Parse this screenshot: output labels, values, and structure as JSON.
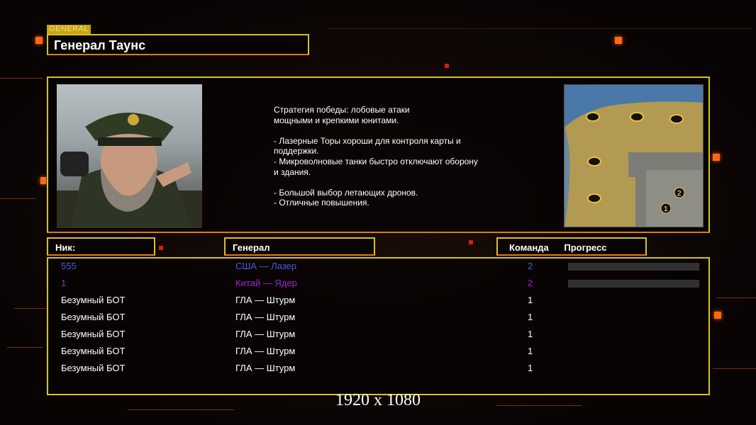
{
  "general_tag": "GENERAL",
  "general_name": "Генерал Таунс",
  "description": "Стратегия победы: лобовые атаки\nмощными и крепкими юнитами.\n\n- Лазерные Торы хороши для контроля карты и\n поддержки.\n- Микроволновые танки быстро отключают оборону\n и здания.\n\n- Большой выбор летающих дронов.\n- Отличные повышения.",
  "headers": {
    "nick": "Ник:",
    "general": "Генерал",
    "team": "Команда",
    "progress": "Прогресс"
  },
  "players": [
    {
      "nick": "555",
      "general": "США — Лазер",
      "team": "2",
      "color": "#4a5ae0",
      "progress": 0
    },
    {
      "nick": "1",
      "general": "Китай — Ядер",
      "team": "2",
      "color": "#9a28d2",
      "progress": 0
    },
    {
      "nick": "Безумный БОТ",
      "general": "ГЛА — Штурм",
      "team": "1",
      "color": "#ffffff"
    },
    {
      "nick": "Безумный БОТ",
      "general": "ГЛА — Штурм",
      "team": "1",
      "color": "#ffffff"
    },
    {
      "nick": "Безумный БОТ",
      "general": "ГЛА — Штурм",
      "team": "1",
      "color": "#ffffff"
    },
    {
      "nick": "Безумный БОТ",
      "general": "ГЛА — Штурм",
      "team": "1",
      "color": "#ffffff"
    },
    {
      "nick": "Безумный БОТ",
      "general": "ГЛА — Штурм",
      "team": "1",
      "color": "#ffffff"
    }
  ],
  "map_markers": [
    "1",
    "2"
  ],
  "resolution": "1920 x 1080",
  "colors": {
    "frame": "#d8c21c",
    "accent": "#ff6a10"
  }
}
